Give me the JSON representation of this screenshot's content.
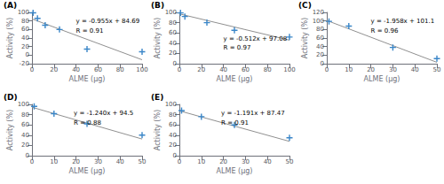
{
  "chart_data": [
    {
      "type": "scatter",
      "title": "(A)",
      "xlabel": "ALME (μg)",
      "ylabel": "Activity (%)",
      "annotations": [
        "y = -0.955x + 84.69",
        "R = 0.91"
      ],
      "xlim": [
        0,
        100
      ],
      "ylim": [
        -20,
        100
      ],
      "xticks": [
        0,
        20,
        40,
        60,
        80,
        100
      ],
      "yticks": [
        -20,
        0,
        20,
        40,
        60,
        80,
        100
      ],
      "grid": false,
      "series": [
        {
          "type": "line",
          "color": "#909090",
          "line_style": "solid",
          "x": [
            0,
            100
          ],
          "values": [
            84.69,
            -10.81
          ]
        },
        {
          "type": "scatter",
          "color": "#3A86C8",
          "marker": "plus",
          "x": [
            1,
            5,
            12,
            25,
            50,
            100
          ],
          "values": [
            99,
            86,
            70,
            60,
            14,
            8
          ]
        }
      ]
    },
    {
      "type": "scatter",
      "title": "(B)",
      "xlabel": "ALME (μg)",
      "ylabel": "Activity (%)",
      "annotations": [
        "y = -0.512x + 97.08",
        "R = 0.97"
      ],
      "xlim": [
        0,
        100
      ],
      "ylim": [
        0,
        100
      ],
      "xticks": [
        0,
        20,
        40,
        60,
        80,
        100
      ],
      "yticks": [
        0,
        20,
        40,
        60,
        80,
        100
      ],
      "grid": false,
      "series": [
        {
          "type": "line",
          "color": "#909090",
          "line_style": "solid",
          "x": [
            0,
            100
          ],
          "values": [
            97.08,
            45.88
          ]
        },
        {
          "type": "scatter",
          "color": "#3A86C8",
          "marker": "plus",
          "x": [
            1,
            5,
            25,
            50,
            100
          ],
          "values": [
            99,
            92,
            80,
            65,
            52
          ]
        }
      ]
    },
    {
      "type": "scatter",
      "title": "(C)",
      "xlabel": "ALME (μg)",
      "ylabel": "Activity (%)",
      "annotations": [
        "y = -1.958x + 101.1",
        "R = 0.96"
      ],
      "xlim": [
        0,
        50
      ],
      "ylim": [
        0,
        120
      ],
      "xticks": [
        0,
        10,
        20,
        30,
        40,
        50
      ],
      "yticks": [
        0,
        20,
        40,
        60,
        80,
        100,
        120
      ],
      "grid": false,
      "series": [
        {
          "type": "line",
          "color": "#909090",
          "line_style": "solid",
          "x": [
            0,
            50
          ],
          "values": [
            101.1,
            3.2
          ]
        },
        {
          "type": "scatter",
          "color": "#3A86C8",
          "marker": "plus",
          "x": [
            1,
            10,
            30,
            50
          ],
          "values": [
            99,
            88,
            38,
            12
          ]
        }
      ]
    },
    {
      "type": "scatter",
      "title": "(D)",
      "xlabel": "ALME (μg)",
      "ylabel": "Activity (%)",
      "annotations": [
        "y = -1.240x + 94.5",
        "R = 0.88"
      ],
      "xlim": [
        0,
        50
      ],
      "ylim": [
        0,
        100
      ],
      "xticks": [
        0,
        10,
        20,
        30,
        40,
        50
      ],
      "yticks": [
        0,
        20,
        40,
        60,
        80,
        100
      ],
      "grid": false,
      "series": [
        {
          "type": "line",
          "color": "#909090",
          "line_style": "solid",
          "x": [
            0,
            50
          ],
          "values": [
            94.5,
            32.5
          ]
        },
        {
          "type": "scatter",
          "color": "#3A86C8",
          "marker": "plus",
          "x": [
            1,
            10,
            25,
            50
          ],
          "values": [
            96,
            82,
            62,
            40
          ]
        }
      ]
    },
    {
      "type": "scatter",
      "title": "(E)",
      "xlabel": "ALME (μg)",
      "ylabel": "Activity (%)",
      "annotations": [
        "y = -1.191x + 87.47",
        "R = 0.91"
      ],
      "xlim": [
        0,
        50
      ],
      "ylim": [
        0,
        100
      ],
      "xticks": [
        0,
        10,
        20,
        30,
        40,
        50
      ],
      "yticks": [
        0,
        20,
        40,
        60,
        80,
        100
      ],
      "grid": false,
      "series": [
        {
          "type": "line",
          "color": "#909090",
          "line_style": "solid",
          "x": [
            0,
            50
          ],
          "values": [
            87.47,
            27.92
          ]
        },
        {
          "type": "scatter",
          "color": "#3A86C8",
          "marker": "plus",
          "x": [
            1,
            10,
            25,
            50
          ],
          "values": [
            88,
            76,
            60,
            35
          ]
        }
      ]
    }
  ]
}
